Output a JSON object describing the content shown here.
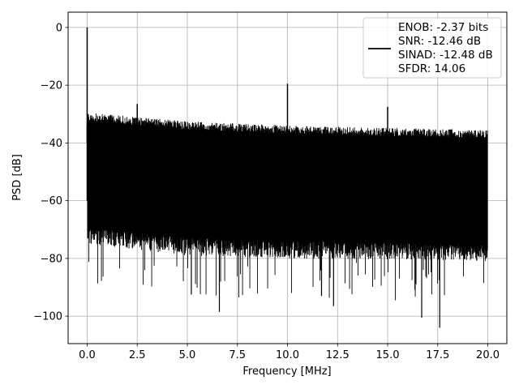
{
  "chart_data": {
    "type": "line",
    "title": "",
    "xlabel": "Frequency [MHz]",
    "ylabel": "PSD [dB]",
    "xlim": [
      -0.95,
      20.95
    ],
    "ylim": [
      -109.5,
      5.3
    ],
    "grid": true,
    "x_ticks": [
      0.0,
      2.5,
      5.0,
      7.5,
      10.0,
      12.5,
      15.0,
      17.5,
      20.0
    ],
    "x_tick_labels": [
      "0.0",
      "2.5",
      "5.0",
      "7.5",
      "10.0",
      "12.5",
      "15.0",
      "17.5",
      "20.0"
    ],
    "y_ticks": [
      0,
      -20,
      -40,
      -60,
      -80,
      -100
    ],
    "y_tick_labels": [
      "0",
      "−20",
      "−40",
      "−60",
      "−80",
      "−100"
    ],
    "legend": {
      "placement": "top-right",
      "entries": [
        "ENOB: -2.37 bits",
        "SNR: -12.46 dB",
        "SINAD: -12.48 dB",
        "SFDR: 14.06"
      ]
    },
    "series": [
      {
        "color": "#000000",
        "x_range": [
          0.0,
          20.0
        ],
        "noise_floor_top": [
          [
            0.1,
            -31
          ],
          [
            5.0,
            -34
          ],
          [
            10.0,
            -35.5
          ],
          [
            20.0,
            -37
          ]
        ],
        "noise_floor_bottom": [
          [
            0.1,
            -69
          ],
          [
            5.0,
            -73
          ],
          [
            10.0,
            -74
          ],
          [
            20.0,
            -75
          ]
        ],
        "peaks": [
          {
            "x": 0.0,
            "y": 0.0
          },
          {
            "x": 2.5,
            "y": -26.5
          },
          {
            "x": 10.0,
            "y": -19.5
          },
          {
            "x": 15.0,
            "y": -27.5
          }
        ],
        "deep_dips": [
          {
            "x": 6.6,
            "y": -98.5
          },
          {
            "x": 16.7,
            "y": -100.5
          },
          {
            "x": 17.6,
            "y": -104.0
          },
          {
            "x": 12.3,
            "y": -96.5
          },
          {
            "x": 11.7,
            "y": -93.0
          },
          {
            "x": 5.2,
            "y": -92.5
          }
        ]
      }
    ]
  }
}
